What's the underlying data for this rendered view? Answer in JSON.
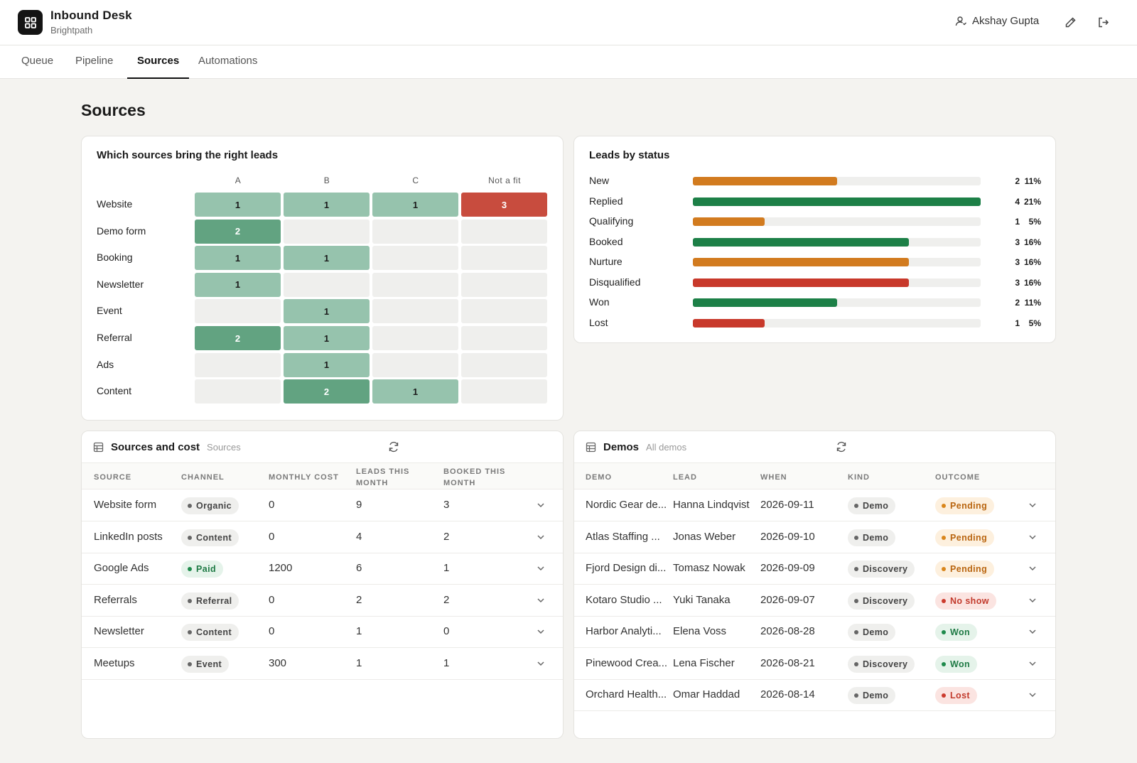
{
  "app": {
    "title": "Inbound Desk",
    "subtitle": "Brightpath",
    "user": "Akshay Gupta"
  },
  "tabs": [
    "Queue",
    "Pipeline",
    "Sources",
    "Automations"
  ],
  "active_tab": "Sources",
  "page_title": "Sources",
  "heatmap": {
    "title": "Which sources bring the right leads",
    "columns": [
      "A",
      "B",
      "C",
      "Not a fit"
    ],
    "rows": [
      {
        "label": "Website",
        "values": [
          "1",
          "1",
          "1",
          "3"
        ]
      },
      {
        "label": "Demo form",
        "values": [
          "2",
          "",
          "",
          ""
        ]
      },
      {
        "label": "Booking",
        "values": [
          "1",
          "1",
          "",
          ""
        ]
      },
      {
        "label": "Newsletter",
        "values": [
          "1",
          "",
          "",
          ""
        ]
      },
      {
        "label": "Event",
        "values": [
          "",
          "1",
          "",
          ""
        ]
      },
      {
        "label": "Referral",
        "values": [
          "2",
          "1",
          "",
          ""
        ]
      },
      {
        "label": "Ads",
        "values": [
          "",
          "1",
          "",
          ""
        ]
      },
      {
        "label": "Content",
        "values": [
          "",
          "2",
          "1",
          ""
        ]
      }
    ],
    "colors": {
      "empty": "#efefed",
      "one": "#96c3ad",
      "two": "#62a381",
      "notfit": "#c84c3e"
    }
  },
  "status": {
    "title": "Leads by status",
    "items": [
      {
        "label": "New",
        "count": "2",
        "pct": "11%",
        "fraction": 0.5,
        "color": "#d27b1f"
      },
      {
        "label": "Replied",
        "count": "4",
        "pct": "21%",
        "fraction": 1.0,
        "color": "#1d8047"
      },
      {
        "label": "Qualifying",
        "count": "1",
        "pct": "5%",
        "fraction": 0.25,
        "color": "#d27b1f"
      },
      {
        "label": "Booked",
        "count": "3",
        "pct": "16%",
        "fraction": 0.75,
        "color": "#1d8047"
      },
      {
        "label": "Nurture",
        "count": "3",
        "pct": "16%",
        "fraction": 0.75,
        "color": "#d27b1f"
      },
      {
        "label": "Disqualified",
        "count": "3",
        "pct": "16%",
        "fraction": 0.75,
        "color": "#c8392b"
      },
      {
        "label": "Won",
        "count": "2",
        "pct": "11%",
        "fraction": 0.5,
        "color": "#1d8047"
      },
      {
        "label": "Lost",
        "count": "1",
        "pct": "5%",
        "fraction": 0.25,
        "color": "#c8392b"
      }
    ]
  },
  "sources_table": {
    "title": "Sources and cost",
    "subtitle": "Sources",
    "headers": [
      "SOURCE",
      "CHANNEL",
      "MONTHLY COST",
      "LEADS THIS MONTH",
      "BOOKED THIS MONTH"
    ],
    "rows": [
      {
        "source": "Website form",
        "channel": "Organic",
        "tone": "neutral",
        "cost": "0",
        "leads": "9",
        "booked": "3"
      },
      {
        "source": "LinkedIn posts",
        "channel": "Content",
        "tone": "neutral",
        "cost": "0",
        "leads": "4",
        "booked": "2"
      },
      {
        "source": "Google Ads",
        "channel": "Paid",
        "tone": "green",
        "cost": "1200",
        "leads": "6",
        "booked": "1"
      },
      {
        "source": "Referrals",
        "channel": "Referral",
        "tone": "neutral",
        "cost": "0",
        "leads": "2",
        "booked": "2"
      },
      {
        "source": "Newsletter",
        "channel": "Content",
        "tone": "neutral",
        "cost": "0",
        "leads": "1",
        "booked": "0"
      },
      {
        "source": "Meetups",
        "channel": "Event",
        "tone": "neutral",
        "cost": "300",
        "leads": "1",
        "booked": "1"
      }
    ]
  },
  "demos_table": {
    "title": "Demos",
    "subtitle": "All demos",
    "headers": [
      "DEMO",
      "LEAD",
      "WHEN",
      "KIND",
      "OUTCOME"
    ],
    "rows": [
      {
        "demo": "Nordic Gear de...",
        "lead": "Hanna Lindqvist",
        "when": "2026-09-11",
        "kind": "Demo",
        "outcome": "Pending",
        "tone": "amber"
      },
      {
        "demo": "Atlas Staffing ...",
        "lead": "Jonas Weber",
        "when": "2026-09-10",
        "kind": "Demo",
        "outcome": "Pending",
        "tone": "amber"
      },
      {
        "demo": "Fjord Design di...",
        "lead": "Tomasz Nowak",
        "when": "2026-09-09",
        "kind": "Discovery",
        "outcome": "Pending",
        "tone": "amber"
      },
      {
        "demo": "Kotaro Studio ...",
        "lead": "Yuki Tanaka",
        "when": "2026-09-07",
        "kind": "Discovery",
        "outcome": "No show",
        "tone": "red"
      },
      {
        "demo": "Harbor Analyti...",
        "lead": "Elena Voss",
        "when": "2026-08-28",
        "kind": "Demo",
        "outcome": "Won",
        "tone": "green"
      },
      {
        "demo": "Pinewood Crea...",
        "lead": "Lena Fischer",
        "when": "2026-08-21",
        "kind": "Discovery",
        "outcome": "Won",
        "tone": "green"
      },
      {
        "demo": "Orchard Health...",
        "lead": "Omar Haddad",
        "when": "2026-08-14",
        "kind": "Demo",
        "outcome": "Lost",
        "tone": "red"
      }
    ]
  }
}
